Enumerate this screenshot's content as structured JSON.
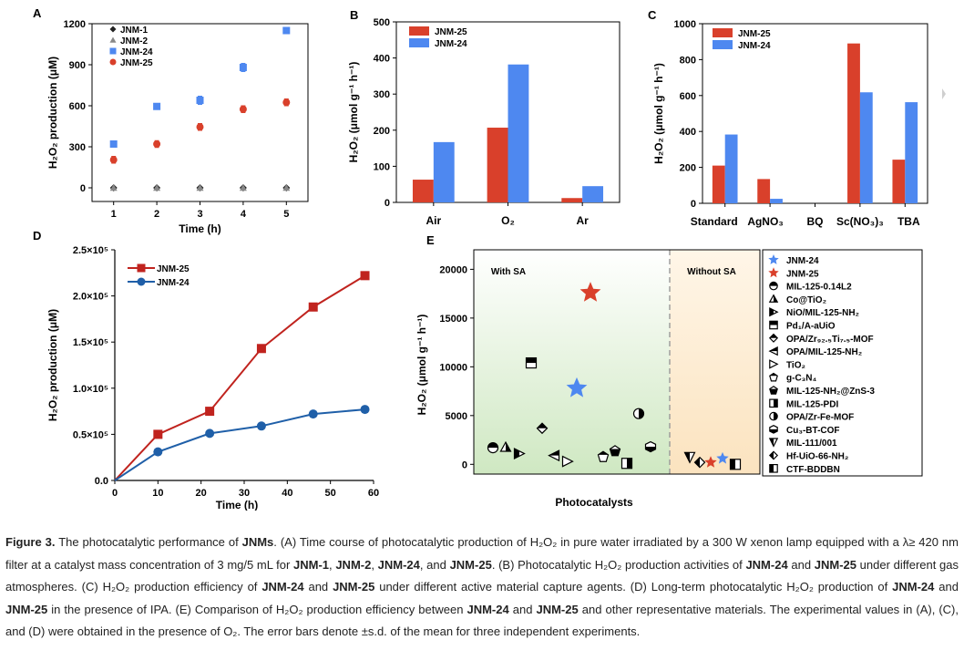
{
  "panels": {
    "A": "A",
    "B": "B",
    "C": "C",
    "D": "D",
    "E": "E"
  },
  "colors": {
    "red": "#d9402b",
    "blue": "#4e88f0",
    "darkred": "#c0231e",
    "darkblue": "#1f5fa8",
    "grey": "#888888"
  },
  "chart_data": [
    {
      "id": "A",
      "type": "scatter",
      "xlabel": "Time (h)",
      "ylabel": "H₂O₂ production (μM)",
      "x": [
        1,
        2,
        3,
        4,
        5
      ],
      "xlim": [
        0.5,
        5.5
      ],
      "ylim": [
        -100,
        1200
      ],
      "xticks": [
        "1",
        "2",
        "3",
        "4",
        "5"
      ],
      "yticks": [
        "0",
        "300",
        "600",
        "900",
        "1200"
      ],
      "series": [
        {
          "name": "JNM-1",
          "marker": "diamond",
          "color": "#222222",
          "values": [
            0,
            0,
            0,
            0,
            0
          ],
          "err": [
            0,
            0,
            0,
            0,
            0
          ]
        },
        {
          "name": "JNM-2",
          "marker": "triangle",
          "color": "#888888",
          "values": [
            0,
            0,
            0,
            0,
            0
          ],
          "err": [
            0,
            0,
            0,
            0,
            0
          ]
        },
        {
          "name": "JNM-24",
          "marker": "square",
          "color": "#4e88f0",
          "values": [
            320,
            595,
            640,
            880,
            1150
          ],
          "err": [
            15,
            15,
            30,
            30,
            15
          ]
        },
        {
          "name": "JNM-25",
          "marker": "circle",
          "color": "#d9402b",
          "values": [
            205,
            320,
            445,
            575,
            625
          ],
          "err": [
            25,
            25,
            25,
            25,
            25
          ]
        }
      ]
    },
    {
      "id": "B",
      "type": "bar",
      "xlabel": "",
      "ylabel": "H₂O₂ (μmol g⁻¹ h⁻¹)",
      "categories": [
        "Air",
        "O₂",
        "Ar"
      ],
      "ylim": [
        0,
        500
      ],
      "yticks": [
        "0",
        "100",
        "200",
        "300",
        "400",
        "500"
      ],
      "series": [
        {
          "name": "JNM-25",
          "color": "#d9402b",
          "values": [
            63,
            207,
            12
          ]
        },
        {
          "name": "JNM-24",
          "color": "#4e88f0",
          "values": [
            167,
            382,
            45
          ]
        }
      ]
    },
    {
      "id": "C",
      "type": "bar",
      "xlabel": "",
      "ylabel": "H₂O₂ (μmol g⁻¹ h⁻¹)",
      "categories": [
        "Standard",
        "AgNO₃",
        "BQ",
        "Sc(NO₃)₃",
        "TBA"
      ],
      "ylim": [
        0,
        1000
      ],
      "yticks": [
        "0",
        "200",
        "400",
        "600",
        "800",
        "1000"
      ],
      "series": [
        {
          "name": "JNM-25",
          "color": "#d9402b",
          "values": [
            210,
            135,
            0,
            890,
            243
          ]
        },
        {
          "name": "JNM-24",
          "color": "#4e88f0",
          "values": [
            383,
            25,
            0,
            618,
            563
          ]
        }
      ]
    },
    {
      "id": "D",
      "type": "line",
      "xlabel": "Time (h)",
      "ylabel": "H₂O₂ production (μM)",
      "xlim": [
        0,
        60
      ],
      "ylim": [
        0,
        250000
      ],
      "xticks": [
        "0",
        "10",
        "20",
        "30",
        "40",
        "50",
        "60"
      ],
      "yticks": [
        "0.0",
        "0.5×10⁵",
        "1.0×10⁵",
        "1.5×10⁵",
        "2.0×10⁵",
        "2.5×10⁵"
      ],
      "series": [
        {
          "name": "JNM-25",
          "color": "#c0231e",
          "marker": "square",
          "x": [
            0,
            10,
            22,
            34,
            46,
            58
          ],
          "values": [
            0,
            50000,
            75000,
            143000,
            188000,
            222000
          ]
        },
        {
          "name": "JNM-24",
          "color": "#1f5fa8",
          "marker": "circle",
          "x": [
            0,
            10,
            22,
            34,
            46,
            58
          ],
          "values": [
            0,
            31000,
            51000,
            59000,
            72000,
            77000
          ]
        }
      ]
    },
    {
      "id": "E",
      "type": "scatter",
      "xlabel": "Photocatalysts",
      "ylabel": "H₂O₂ (μmol g⁻¹ h⁻¹)",
      "ylim": [
        -1000,
        22000
      ],
      "yticks": [
        "0",
        "5000",
        "10000",
        "15000",
        "20000"
      ],
      "regions": [
        "With SA",
        "Without SA"
      ],
      "legend": [
        "JNM-24",
        "JNM-25",
        "MIL-125-0.14L2",
        "Co@TiO₂",
        "NiO/MIL-125-NH₂",
        "Pd₁/A-aUiO",
        "OPA/Zr₉₂.₅Ti₇.₅-MOF",
        "OPA/MIL-125-NH₂",
        "TiO₂",
        "g-C₃N₄",
        "MIL-125-NH₂@ZnS-3",
        "MIL-125-PDI",
        "OPA/Zr-Fe-MOF",
        "Cu₃-BT-COF",
        "MIL-111/001",
        "Hf-UiO-66-NH₂",
        "CTF-BDDBN"
      ],
      "points": [
        {
          "name": "JNM-24",
          "region": "With SA",
          "value": 7800
        },
        {
          "name": "JNM-25",
          "region": "With SA",
          "value": 17600
        },
        {
          "name": "MIL-125-0.14L2",
          "region": "With SA",
          "value": 1700
        },
        {
          "name": "Co@TiO₂",
          "region": "With SA",
          "value": 1750
        },
        {
          "name": "NiO/MIL-125-NH₂",
          "region": "With SA",
          "value": 1100
        },
        {
          "name": "Pd₁/A-aUiO",
          "region": "With SA",
          "value": 10400
        },
        {
          "name": "OPA/Zr₉₂.₅Ti₇.₅-MOF",
          "region": "With SA",
          "value": 3700
        },
        {
          "name": "OPA/MIL-125-NH₂",
          "region": "With SA",
          "value": 900
        },
        {
          "name": "TiO₂",
          "region": "With SA",
          "value": 300
        },
        {
          "name": "g-C₃N₄",
          "region": "With SA",
          "value": 800
        },
        {
          "name": "MIL-125-NH₂@ZnS-3",
          "region": "With SA",
          "value": 1400
        },
        {
          "name": "MIL-125-PDI",
          "region": "With SA",
          "value": 100
        },
        {
          "name": "OPA/Zr-Fe-MOF",
          "region": "With SA",
          "value": 5200
        },
        {
          "name": "Cu₃-BT-COF",
          "region": "With SA",
          "value": 1800
        },
        {
          "name": "MIL-111/001",
          "region": "Without SA",
          "value": 700
        },
        {
          "name": "Hf-UiO-66-NH₂",
          "region": "Without SA",
          "value": 200
        },
        {
          "name": "JNM-25",
          "region": "Without SA",
          "value": 200
        },
        {
          "name": "JNM-24",
          "region": "Without SA",
          "value": 600
        },
        {
          "name": "CTF-BDDBN",
          "region": "Without SA",
          "value": 0
        }
      ]
    }
  ],
  "caption": {
    "p1": "Figure 3.",
    "p2": " The photocatalytic performance of ",
    "p3": "JNMs",
    "p4": ". (A) Time course of photocatalytic production of H₂O₂ in pure water irradiated by a 300 W xenon lamp equipped with a λ≥ 420 nm filter at a catalyst mass concentration of 3 mg/5 mL for ",
    "p5": "JNM-1",
    "p6": ", ",
    "p7": "JNM-2",
    "p8": ", ",
    "p9": "JNM-24",
    "p10": ", and ",
    "p11": "JNM-25",
    "p12": ". (B) Photocatalytic H₂O₂ production activities of ",
    "p13": "JNM-24",
    "p14": " and ",
    "p15": "JNM-25",
    "p16": " under different gas atmospheres. (C) H₂O₂ production efficiency of ",
    "p17": "JNM-24",
    "p18": " and ",
    "p19": "JNM-25",
    "p20": " under different active material capture agents. (D) Long-term photocatalytic H₂O₂ production of ",
    "p21": "JNM-24",
    "p22": " and ",
    "p23": "JNM-25",
    "p24": " in the presence of IPA. (E) Comparison of H₂O₂ production efficiency between ",
    "p25": "JNM-24",
    "p26": " and ",
    "p27": "JNM-25",
    "p28": " and other representative materials. The experimental values in (A), (C), and (D) were obtained in the presence of O₂. The error bars denote ±s.d. of the mean for three independent experiments."
  }
}
